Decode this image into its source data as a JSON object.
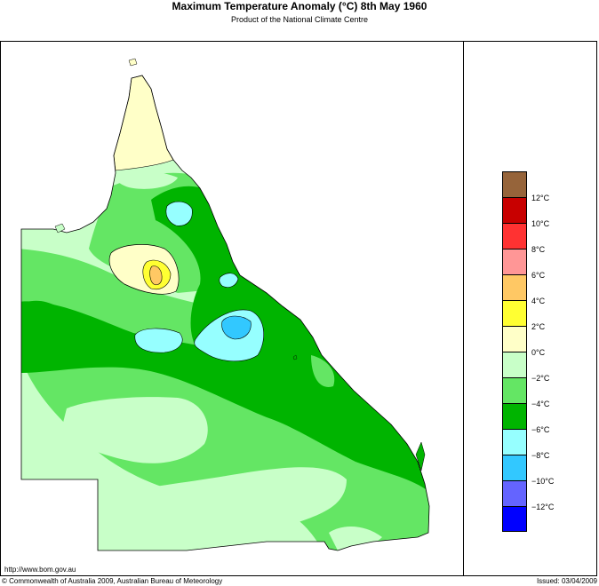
{
  "title": "Maximum Temperature Anomaly (°C)  8th May 1960",
  "subtitle": "Product of the National Climate Centre",
  "legend": {
    "colors": [
      "#96643a",
      "#c80000",
      "#ff3232",
      "#ff9696",
      "#ffc864",
      "#ffff32",
      "#ffffc8",
      "#c8ffc8",
      "#64e664",
      "#00b400",
      "#96ffff",
      "#32c8ff",
      "#6464ff",
      "#0000ff"
    ],
    "labels": [
      "12°C",
      "10°C",
      "8°C",
      "6°C",
      "4°C",
      "2°C",
      "0°C",
      "−2°C",
      "−4°C",
      "−6°C",
      "−8°C",
      "−10°C",
      "−12°C"
    ]
  },
  "footer": {
    "url": "http://www.bom.gov.au",
    "copyright": "© Commonwealth of Australia 2009, Australian Bureau of Meteorology",
    "issued": "Issued: 03/04/2009"
  }
}
